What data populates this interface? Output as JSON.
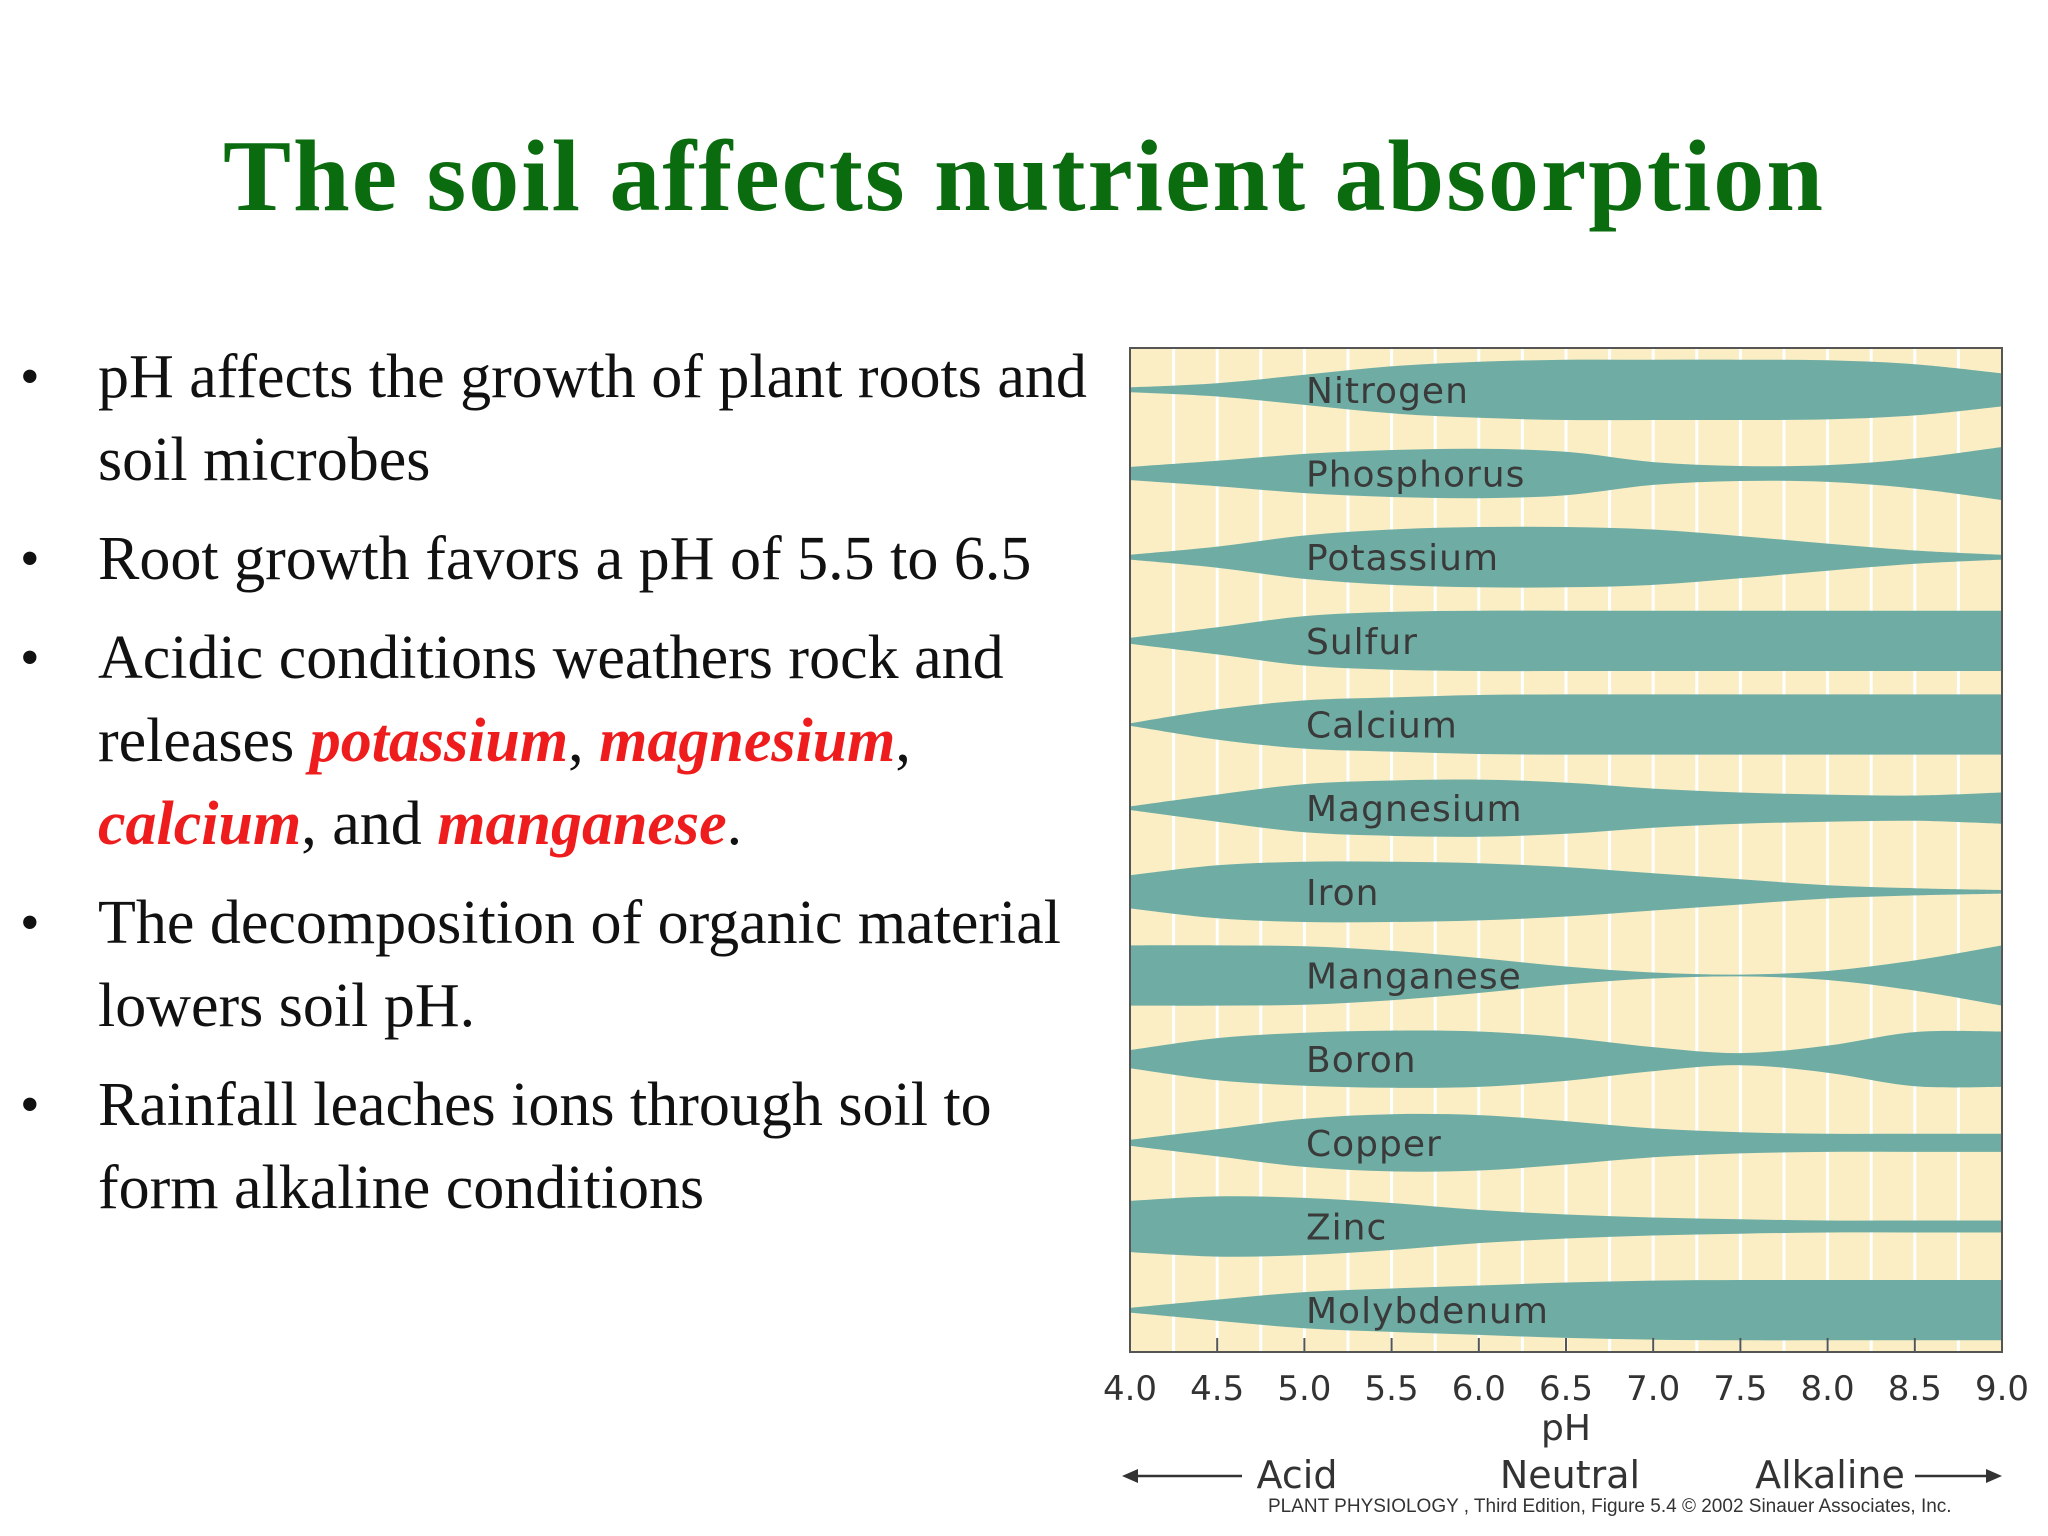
{
  "slide": {
    "title": "The soil affects nutrient absorption",
    "bullets": [
      {
        "segments": [
          {
            "text": "pH affects the growth of plant roots and soil microbes",
            "highlight": false
          }
        ]
      },
      {
        "segments": [
          {
            "text": "Root growth favors a pH of 5.5 to 6.5",
            "highlight": false
          }
        ]
      },
      {
        "segments": [
          {
            "text": "Acidic conditions weathers rock and releases ",
            "highlight": false
          },
          {
            "text": "potassium",
            "highlight": true
          },
          {
            "text": ", ",
            "highlight": false
          },
          {
            "text": "magnesium",
            "highlight": true
          },
          {
            "text": ", ",
            "highlight": false
          },
          {
            "text": "calcium",
            "highlight": true
          },
          {
            "text": ", and ",
            "highlight": false
          },
          {
            "text": "manganese",
            "highlight": true
          },
          {
            "text": ".",
            "highlight": false
          }
        ]
      },
      {
        "segments": [
          {
            "text": "The decomposition of organic material lowers soil pH.",
            "highlight": false
          }
        ]
      },
      {
        "segments": [
          {
            "text": "Rainfall leaches ions through soil to form alkaline conditions",
            "highlight": false
          }
        ]
      }
    ],
    "bullet_symbol": "•",
    "credit": "PLANT PHYSIOLOGY , Third Edition, Figure 5.4  © 2002 Sinauer Associates, Inc."
  },
  "colors": {
    "title": "#0a6b0f",
    "highlight": "#ee1c1c",
    "band": "#6fada4",
    "chart_background": "#fbeec5",
    "gridline": "#ffffff"
  },
  "chart_data": {
    "type": "area",
    "title": "",
    "xlabel": "pH",
    "ylabel": "",
    "xlim": [
      4.0,
      9.0
    ],
    "x_ticks": [
      "4.0",
      "4.5",
      "5.0",
      "5.5",
      "6.0",
      "6.5",
      "7.0",
      "7.5",
      "8.0",
      "8.5",
      "9.0"
    ],
    "grid": "vertical",
    "value_meaning": "relative availability, 0 = none, 1 = maximum",
    "regions": [
      {
        "label": "Acid",
        "arrow": "left"
      },
      {
        "label": "Neutral",
        "arrow": "none"
      },
      {
        "label": "Alkaline",
        "arrow": "right"
      }
    ],
    "series": [
      {
        "name": "Nitrogen",
        "x": [
          4.0,
          4.5,
          5.0,
          5.5,
          6.0,
          6.5,
          7.0,
          7.5,
          8.0,
          8.5,
          9.0
        ],
        "values": [
          0.08,
          0.22,
          0.5,
          0.78,
          0.93,
          1.0,
          1.0,
          1.0,
          0.98,
          0.85,
          0.55
        ]
      },
      {
        "name": "Phosphorus",
        "x": [
          4.0,
          4.5,
          5.0,
          5.5,
          6.0,
          6.5,
          7.0,
          7.5,
          8.0,
          8.5,
          9.0
        ],
        "values": [
          0.22,
          0.42,
          0.65,
          0.78,
          0.82,
          0.72,
          0.38,
          0.25,
          0.28,
          0.5,
          0.88
        ]
      },
      {
        "name": "Potassium",
        "x": [
          4.0,
          4.5,
          5.0,
          5.5,
          6.0,
          6.5,
          7.0,
          7.5,
          8.0,
          8.5,
          9.0
        ],
        "values": [
          0.08,
          0.35,
          0.72,
          0.92,
          1.0,
          1.0,
          0.92,
          0.7,
          0.45,
          0.22,
          0.08
        ]
      },
      {
        "name": "Sulfur",
        "x": [
          4.0,
          4.5,
          5.0,
          5.5,
          6.0,
          6.5,
          7.0,
          7.5,
          8.0,
          8.5,
          9.0
        ],
        "values": [
          0.1,
          0.45,
          0.82,
          0.96,
          1.0,
          1.0,
          1.0,
          1.0,
          1.0,
          1.0,
          1.0
        ]
      },
      {
        "name": "Calcium",
        "x": [
          4.0,
          4.5,
          5.0,
          5.5,
          6.0,
          6.5,
          7.0,
          7.5,
          8.0,
          8.5,
          9.0
        ],
        "values": [
          0.04,
          0.5,
          0.8,
          0.9,
          0.98,
          1.0,
          1.0,
          1.0,
          1.0,
          1.0,
          1.0
        ]
      },
      {
        "name": "Magnesium",
        "x": [
          4.0,
          4.5,
          5.0,
          5.5,
          6.0,
          6.5,
          7.0,
          7.5,
          8.0,
          8.5,
          9.0
        ],
        "values": [
          0.06,
          0.45,
          0.8,
          0.92,
          0.95,
          0.85,
          0.65,
          0.52,
          0.45,
          0.42,
          0.52
        ]
      },
      {
        "name": "Iron",
        "x": [
          4.0,
          4.5,
          5.0,
          5.5,
          6.0,
          6.5,
          7.0,
          7.5,
          8.0,
          8.5,
          9.0
        ],
        "values": [
          0.55,
          0.88,
          1.0,
          1.0,
          0.95,
          0.82,
          0.62,
          0.42,
          0.22,
          0.12,
          0.06
        ]
      },
      {
        "name": "Manganese",
        "x": [
          4.0,
          4.5,
          5.0,
          5.5,
          6.0,
          6.5,
          7.0,
          7.5,
          8.0,
          8.5,
          9.0
        ],
        "values": [
          1.0,
          1.0,
          0.97,
          0.82,
          0.58,
          0.3,
          0.1,
          0.03,
          0.15,
          0.5,
          1.0
        ]
      },
      {
        "name": "Boron",
        "x": [
          4.0,
          4.5,
          5.0,
          5.5,
          6.0,
          6.5,
          7.0,
          7.5,
          8.0,
          8.5,
          9.0
        ],
        "values": [
          0.3,
          0.7,
          0.88,
          0.95,
          0.92,
          0.72,
          0.4,
          0.2,
          0.45,
          0.9,
          0.92
        ]
      },
      {
        "name": "Copper",
        "x": [
          4.0,
          4.5,
          5.0,
          5.5,
          6.0,
          6.5,
          7.0,
          7.5,
          8.0,
          8.5,
          9.0
        ],
        "values": [
          0.1,
          0.45,
          0.8,
          0.95,
          0.92,
          0.72,
          0.48,
          0.35,
          0.3,
          0.3,
          0.3
        ]
      },
      {
        "name": "Zinc",
        "x": [
          4.0,
          4.5,
          5.0,
          5.5,
          6.0,
          6.5,
          7.0,
          7.5,
          8.0,
          8.5,
          9.0
        ],
        "values": [
          0.85,
          1.0,
          0.95,
          0.78,
          0.55,
          0.4,
          0.3,
          0.24,
          0.2,
          0.2,
          0.2
        ]
      },
      {
        "name": "Molybdenum",
        "x": [
          4.0,
          4.5,
          5.0,
          5.5,
          6.0,
          6.5,
          7.0,
          7.5,
          8.0,
          8.5,
          9.0
        ],
        "values": [
          0.08,
          0.35,
          0.6,
          0.72,
          0.82,
          0.92,
          0.98,
          1.0,
          1.0,
          1.0,
          1.0
        ]
      }
    ]
  }
}
